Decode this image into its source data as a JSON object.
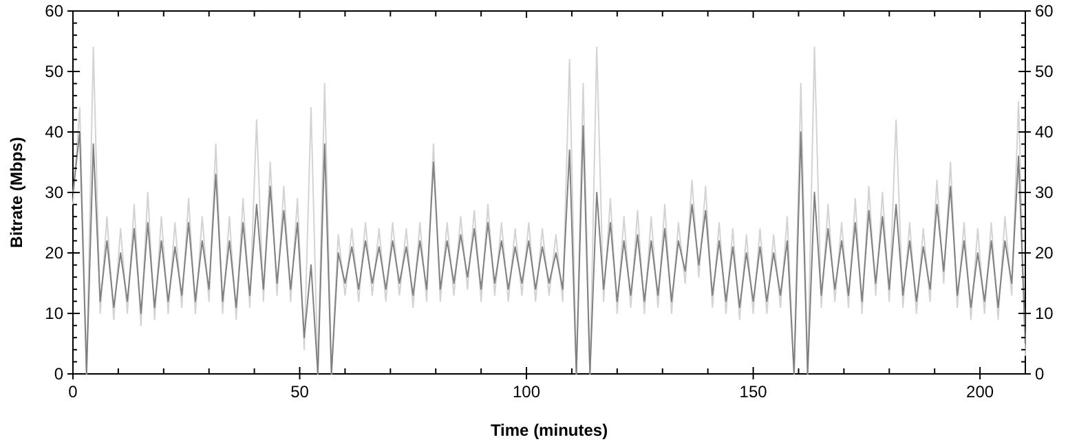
{
  "chart_data": {
    "type": "line",
    "xlabel": "Time (minutes)",
    "ylabel": "Bitrate (Mbps)",
    "xlim": [
      0,
      210
    ],
    "xticks": [
      0,
      {
        "value": 10,
        "label": null
      },
      {
        "value": 20,
        "label": null
      },
      {
        "value": 30,
        "label": null
      },
      {
        "value": 40,
        "label": null
      },
      50,
      {
        "value": 60,
        "label": null
      },
      {
        "value": 70,
        "label": null
      },
      {
        "value": 80,
        "label": null
      },
      {
        "value": 90,
        "label": null
      },
      100,
      {
        "value": 110,
        "label": null
      },
      {
        "value": 120,
        "label": null
      },
      {
        "value": 130,
        "label": null
      },
      {
        "value": 140,
        "label": null
      },
      150,
      {
        "value": 160,
        "label": null
      },
      {
        "value": 170,
        "label": null
      },
      {
        "value": 180,
        "label": null
      },
      {
        "value": 190,
        "label": null
      },
      200,
      {
        "value": 210,
        "label": null
      }
    ],
    "ylim": [
      0,
      60
    ],
    "yticks": [
      0,
      {
        "value": 2,
        "label": null
      },
      {
        "value": 4,
        "label": null
      },
      {
        "value": 6,
        "label": null
      },
      {
        "value": 8,
        "label": null
      },
      10,
      {
        "value": 12,
        "label": null
      },
      {
        "value": 14,
        "label": null
      },
      {
        "value": 16,
        "label": null
      },
      {
        "value": 18,
        "label": null
      },
      20,
      {
        "value": 22,
        "label": null
      },
      {
        "value": 24,
        "label": null
      },
      {
        "value": 26,
        "label": null
      },
      {
        "value": 28,
        "label": null
      },
      30,
      {
        "value": 32,
        "label": null
      },
      {
        "value": 34,
        "label": null
      },
      {
        "value": 36,
        "label": null
      },
      {
        "value": 38,
        "label": null
      },
      40,
      {
        "value": 42,
        "label": null
      },
      {
        "value": 44,
        "label": null
      },
      {
        "value": 46,
        "label": null
      },
      {
        "value": 48,
        "label": null
      },
      50,
      {
        "value": 52,
        "label": null
      },
      {
        "value": 54,
        "label": null
      },
      {
        "value": 56,
        "label": null
      },
      {
        "value": 58,
        "label": null
      },
      60
    ],
    "y2lim": [
      0,
      60
    ],
    "y2ticks": [
      0,
      {
        "value": 2,
        "label": null
      },
      {
        "value": 4,
        "label": null
      },
      {
        "value": 6,
        "label": null
      },
      {
        "value": 8,
        "label": null
      },
      10,
      {
        "value": 12,
        "label": null
      },
      {
        "value": 14,
        "label": null
      },
      {
        "value": 16,
        "label": null
      },
      {
        "value": 18,
        "label": null
      },
      20,
      {
        "value": 22,
        "label": null
      },
      {
        "value": 24,
        "label": null
      },
      {
        "value": 26,
        "label": null
      },
      {
        "value": 28,
        "label": null
      },
      30,
      {
        "value": 32,
        "label": null
      },
      {
        "value": 34,
        "label": null
      },
      {
        "value": 36,
        "label": null
      },
      {
        "value": 38,
        "label": null
      },
      40,
      {
        "value": 42,
        "label": null
      },
      {
        "value": 44,
        "label": null
      },
      {
        "value": 46,
        "label": null
      },
      {
        "value": 48,
        "label": null
      },
      50,
      {
        "value": 52,
        "label": null
      },
      {
        "value": 54,
        "label": null
      },
      {
        "value": 56,
        "label": null
      },
      {
        "value": 58,
        "label": null
      },
      60
    ],
    "marker": "none",
    "line_style": "solid",
    "grid": false,
    "x": [
      0,
      1.5,
      3,
      4.5,
      6,
      7.5,
      9,
      10.5,
      12,
      13.5,
      15,
      16.5,
      18,
      19.5,
      21,
      22.5,
      24,
      25.5,
      27,
      28.5,
      30,
      31.5,
      33,
      34.5,
      36,
      37.5,
      39,
      40.5,
      42,
      43.5,
      45,
      46.5,
      48,
      49.5,
      51,
      52.5,
      54,
      55.5,
      57,
      58.5,
      60,
      61.5,
      63,
      64.5,
      66,
      67.5,
      69,
      70.5,
      72,
      73.5,
      75,
      76.5,
      78,
      79.5,
      81,
      82.5,
      84,
      85.5,
      87,
      88.5,
      90,
      91.5,
      93,
      94.5,
      96,
      97.5,
      99,
      100.5,
      102,
      103.5,
      105,
      106.5,
      108,
      109.5,
      111,
      112.5,
      114,
      115.5,
      117,
      118.5,
      120,
      121.5,
      123,
      124.5,
      126,
      127.5,
      129,
      130.5,
      132,
      133.5,
      135,
      136.5,
      138,
      139.5,
      141,
      142.5,
      144,
      145.5,
      147,
      148.5,
      150,
      151.5,
      153,
      154.5,
      156,
      157.5,
      159,
      160.5,
      162,
      163.5,
      165,
      166.5,
      168,
      169.5,
      171,
      172.5,
      174,
      175.5,
      177,
      178.5,
      180,
      181.5,
      183,
      184.5,
      186,
      187.5,
      189,
      190.5,
      192,
      193.5,
      195,
      196.5,
      198,
      199.5,
      201,
      202.5,
      204,
      205.5,
      207,
      208.5,
      210
    ],
    "series": [
      {
        "color": "#d3d3d3",
        "values": [
          28,
          44,
          0,
          54,
          10,
          26,
          9,
          24,
          10,
          28,
          8,
          30,
          9,
          26,
          10,
          25,
          11,
          29,
          10,
          26,
          12,
          38,
          10,
          26,
          9,
          29,
          11,
          42,
          12,
          35,
          13,
          31,
          12,
          29,
          4,
          44,
          0,
          48,
          0,
          23,
          13,
          24,
          12,
          25,
          13,
          24,
          12,
          25,
          13,
          24,
          11,
          25,
          12,
          38,
          12,
          25,
          13,
          26,
          14,
          27,
          12,
          28,
          13,
          25,
          12,
          24,
          13,
          25,
          12,
          24,
          13,
          23,
          12,
          52,
          0,
          48,
          0,
          54,
          12,
          29,
          10,
          26,
          11,
          27,
          10,
          26,
          11,
          28,
          10,
          25,
          15,
          32,
          16,
          31,
          11,
          25,
          10,
          24,
          9,
          23,
          10,
          24,
          10,
          23,
          11,
          26,
          0,
          48,
          0,
          54,
          11,
          28,
          12,
          25,
          11,
          29,
          10,
          31,
          13,
          30,
          12,
          42,
          11,
          25,
          10,
          24,
          12,
          32,
          15,
          35,
          11,
          25,
          9,
          24,
          10,
          25,
          9,
          26,
          13,
          45,
          3
        ]
      },
      {
        "color": "#808080",
        "values": [
          30,
          40,
          0,
          38,
          12,
          22,
          11,
          20,
          12,
          24,
          10,
          25,
          11,
          22,
          12,
          21,
          13,
          25,
          12,
          22,
          14,
          33,
          12,
          22,
          11,
          25,
          13,
          28,
          14,
          31,
          15,
          27,
          14,
          25,
          6,
          18,
          0,
          38,
          0,
          20,
          15,
          21,
          14,
          22,
          15,
          21,
          14,
          22,
          15,
          21,
          13,
          22,
          14,
          35,
          14,
          22,
          15,
          23,
          16,
          24,
          14,
          25,
          15,
          22,
          14,
          21,
          15,
          22,
          14,
          21,
          15,
          20,
          14,
          37,
          0,
          41,
          0,
          30,
          14,
          25,
          12,
          22,
          13,
          23,
          12,
          22,
          13,
          24,
          12,
          22,
          17,
          28,
          18,
          27,
          13,
          22,
          12,
          21,
          11,
          20,
          12,
          21,
          12,
          20,
          13,
          22,
          0,
          40,
          0,
          30,
          13,
          24,
          14,
          22,
          13,
          25,
          12,
          27,
          15,
          26,
          14,
          28,
          13,
          22,
          12,
          21,
          14,
          28,
          17,
          31,
          13,
          22,
          11,
          20,
          12,
          22,
          11,
          22,
          15,
          36,
          5
        ]
      }
    ]
  }
}
